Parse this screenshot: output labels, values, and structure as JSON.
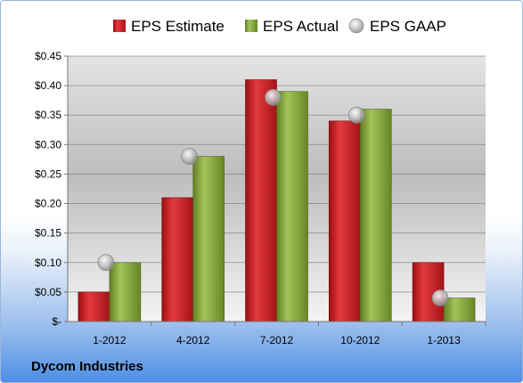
{
  "chart_data": {
    "type": "bar",
    "categories": [
      "1-2012",
      "4-2012",
      "7-2012",
      "10-2012",
      "1-2013"
    ],
    "series": [
      {
        "name": "EPS Estimate",
        "values": [
          0.05,
          0.21,
          0.41,
          0.34,
          0.1
        ],
        "color": "#c0161b",
        "kind": "bar"
      },
      {
        "name": "EPS Actual",
        "values": [
          0.1,
          0.28,
          0.39,
          0.36,
          0.04
        ],
        "color": "#7fa035",
        "kind": "bar"
      },
      {
        "name": "EPS GAAP",
        "values": [
          0.1,
          0.28,
          0.38,
          0.35,
          0.04
        ],
        "color": "#b9b9b9",
        "kind": "marker"
      }
    ],
    "yticks": [
      "$-",
      "$0.05",
      "$0.10",
      "$0.15",
      "$0.20",
      "$0.25",
      "$0.30",
      "$0.35",
      "$0.40",
      "$0.45"
    ],
    "ylim": [
      0,
      0.45
    ],
    "grid": true,
    "legend": "top"
  },
  "footer": {
    "company": "Dycom Industries"
  }
}
